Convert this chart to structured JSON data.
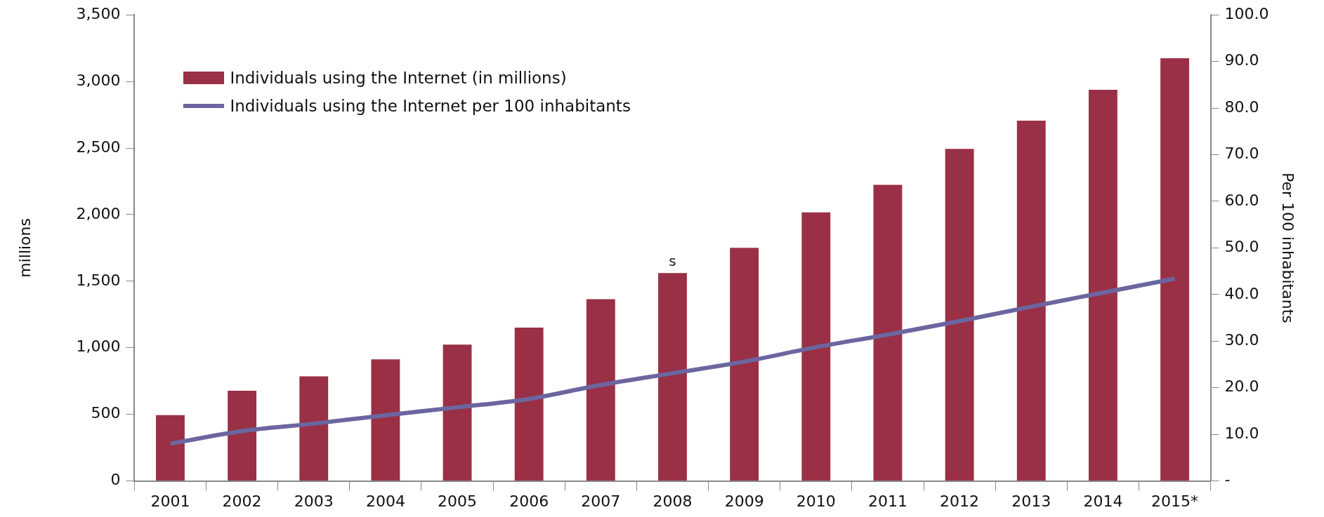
{
  "chart_data": {
    "type": "bar",
    "ylabel": "millions",
    "y2label": "Per 100 inhabitants",
    "categories": [
      "2001",
      "2002",
      "2003",
      "2004",
      "2005",
      "2006",
      "2007",
      "2008",
      "2009",
      "2010",
      "2011",
      "2012",
      "2013",
      "2014",
      "2015*"
    ],
    "series": [
      {
        "name": "Individuals using the Internet (in millions)",
        "color": "#9a3045",
        "values": [
          495,
          677,
          785,
          913,
          1024,
          1151,
          1365,
          1561,
          1751,
          2017,
          2224,
          2494,
          2705,
          2937,
          3174
        ]
      },
      {
        "name": "Individuals using the Internet per 100 inhabitants",
        "type": "line",
        "axis": "y2",
        "color": "#6b66a0",
        "values": [
          8.0,
          10.7,
          12.3,
          14.1,
          15.8,
          17.6,
          20.6,
          23.1,
          25.6,
          28.7,
          31.4,
          34.3,
          37.4,
          40.4,
          43.4
        ]
      }
    ],
    "ylim": [
      0,
      3500
    ],
    "yticks": [
      {
        "value": 0,
        "label": "0"
      },
      {
        "value": 500,
        "label": "500"
      },
      {
        "value": 1000,
        "label": "1,000"
      },
      {
        "value": 1500,
        "label": "1,500"
      },
      {
        "value": 2000,
        "label": "2,000"
      },
      {
        "value": 2500,
        "label": "2,500"
      },
      {
        "value": 3000,
        "label": "3,000"
      },
      {
        "value": 3500,
        "label": "3,500"
      }
    ],
    "y2lim": [
      0,
      100
    ],
    "y2ticks": [
      {
        "value": 0,
        "label": "-"
      },
      {
        "value": 10,
        "label": "10.0"
      },
      {
        "value": 20,
        "label": "20.0"
      },
      {
        "value": 30,
        "label": "30.0"
      },
      {
        "value": 40,
        "label": "40.0"
      },
      {
        "value": 50,
        "label": "50.0"
      },
      {
        "value": 60,
        "label": "60.0"
      },
      {
        "value": 70,
        "label": "70.0"
      },
      {
        "value": 80,
        "label": "80.0"
      },
      {
        "value": 90,
        "label": "90.0"
      },
      {
        "value": 100,
        "label": "100.0"
      }
    ],
    "annotations": [
      "s"
    ],
    "legend": "top left",
    "grid": false,
    "marker": "none",
    "line_style": "solid"
  }
}
